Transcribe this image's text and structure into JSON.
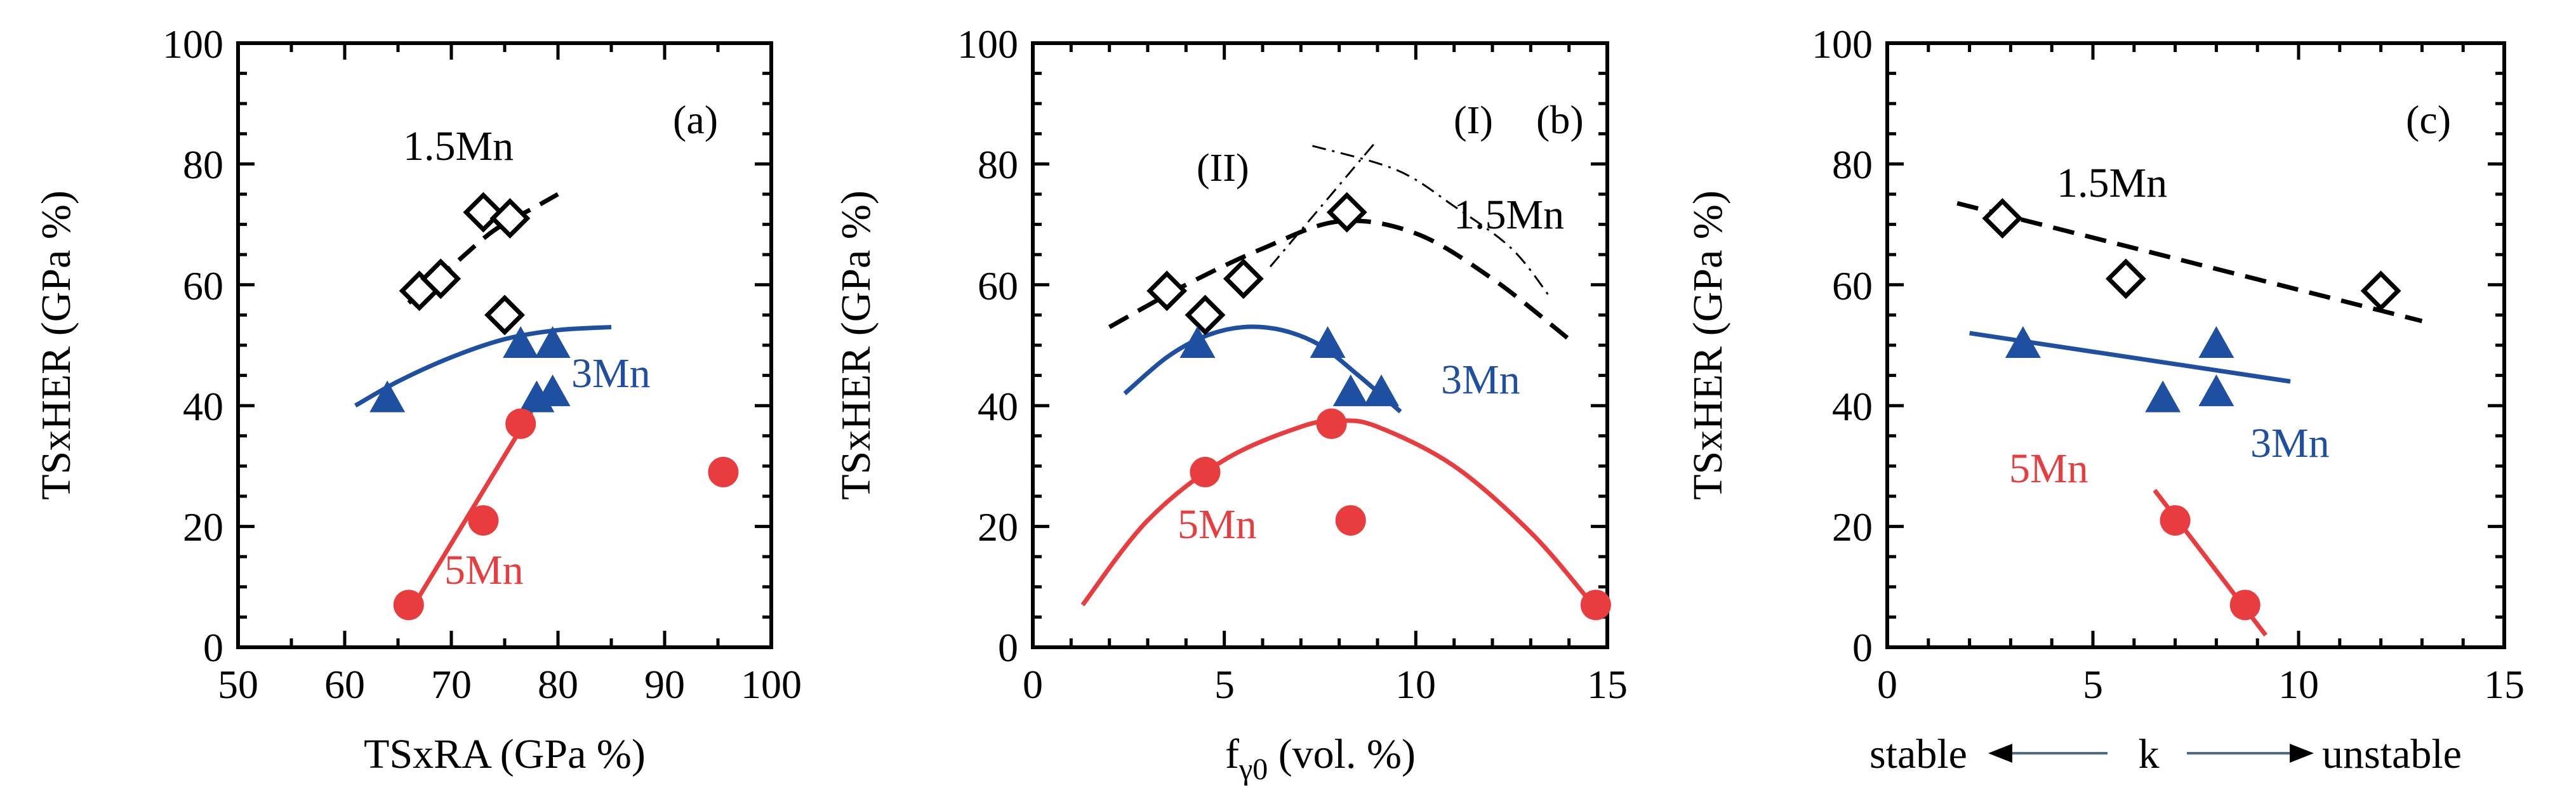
{
  "chart_data": [
    {
      "type": "scatter",
      "panel_label": "(a)",
      "xlabel": "TSxRA (GPa %)",
      "ylabel": "TSxHER (GPa %)",
      "xlim": [
        50,
        100
      ],
      "ylim": [
        0,
        100
      ],
      "xticks": [
        "50",
        "60",
        "70",
        "80",
        "90",
        "100"
      ],
      "yticks": [
        "0",
        "20",
        "40",
        "60",
        "80",
        "100"
      ],
      "series": [
        {
          "name": "1.5Mn",
          "marker": "diamond-open",
          "color": "#000000",
          "points": [
            [
              67,
              59
            ],
            [
              69,
              61
            ],
            [
              73,
              72
            ],
            [
              75.5,
              71
            ],
            [
              75,
              55
            ]
          ],
          "fit": {
            "style": "dashed",
            "points": [
              [
                66,
                57
              ],
              [
                70,
                63
              ],
              [
                74,
                69
              ],
              [
                78,
                73
              ],
              [
                80,
                75
              ]
            ]
          }
        },
        {
          "name": "3Mn",
          "marker": "triangle",
          "color": "#1f4fa0",
          "points": [
            [
              64,
              41
            ],
            [
              76.5,
              50
            ],
            [
              79.5,
              50
            ],
            [
              78,
              41
            ],
            [
              79.5,
              42
            ]
          ],
          "fit": {
            "style": "solid",
            "points": [
              [
                61,
                40
              ],
              [
                65,
                44
              ],
              [
                70,
                48
              ],
              [
                75,
                51
              ],
              [
                80,
                52.5
              ],
              [
                85,
                53
              ]
            ]
          }
        },
        {
          "name": "5Mn",
          "marker": "circle",
          "color": "#e83c3f",
          "points": [
            [
              66,
              7
            ],
            [
              73,
              21
            ],
            [
              76.5,
              37
            ],
            [
              95.5,
              29
            ]
          ],
          "fit": {
            "style": "solid",
            "points": [
              [
                66.5,
                7
              ],
              [
                77.5,
                39
              ]
            ]
          }
        }
      ]
    },
    {
      "type": "scatter",
      "panel_label": "(b)",
      "xlabel": "f",
      "xlabel_sub": "γ0",
      "xlabel_suffix": " (vol. %)",
      "ylabel": "TSxHER (GPa %)",
      "xlim": [
        0,
        15
      ],
      "ylim": [
        0,
        100
      ],
      "xticks": [
        "0",
        "5",
        "10",
        "15"
      ],
      "yticks": [
        "0",
        "20",
        "40",
        "60",
        "80",
        "100"
      ],
      "annotations": [
        "(I)",
        "(II)"
      ],
      "series": [
        {
          "name": "1.5Mn",
          "marker": "diamond-open",
          "color": "#000000",
          "points": [
            [
              3.5,
              59
            ],
            [
              4.5,
              55
            ],
            [
              5.5,
              61
            ],
            [
              8.2,
              72
            ]
          ],
          "fit": {
            "style": "dashed",
            "points": [
              [
                2,
                53
              ],
              [
                4,
                60
              ],
              [
                6,
                66
              ],
              [
                8,
                70.5
              ],
              [
                10,
                68.5
              ],
              [
                12,
                61
              ],
              [
                14,
                51
              ]
            ]
          }
        },
        {
          "name": "3Mn",
          "marker": "triangle",
          "color": "#1f4fa0",
          "points": [
            [
              4.3,
              50
            ],
            [
              7.7,
              50
            ],
            [
              8.3,
              42
            ],
            [
              9.1,
              42
            ]
          ],
          "fit": {
            "style": "solid",
            "points": [
              [
                2.4,
                42
              ],
              [
                3.5,
                48
              ],
              [
                4.5,
                51.5
              ],
              [
                5.5,
                53
              ],
              [
                6.5,
                52.5
              ],
              [
                7.5,
                50
              ],
              [
                8.5,
                45
              ],
              [
                9.6,
                39
              ]
            ]
          }
        },
        {
          "name": "5Mn",
          "marker": "circle",
          "color": "#e83c3f",
          "points": [
            [
              4.5,
              29
            ],
            [
              7.8,
              37
            ],
            [
              8.3,
              21
            ],
            [
              14.7,
              7
            ]
          ],
          "fit": {
            "style": "solid",
            "points": [
              [
                1.3,
                7
              ],
              [
                3,
                21
              ],
              [
                5,
                31
              ],
              [
                7,
                36.5
              ],
              [
                8,
                37.5
              ],
              [
                9,
                36.5
              ],
              [
                11,
                30
              ],
              [
                13,
                19
              ],
              [
                14.5,
                8
              ]
            ]
          }
        },
        {
          "name": "(I)",
          "marker": "none",
          "color": "#000000",
          "fit": {
            "style": "dashdot",
            "points": [
              [
                6.2,
                63
              ],
              [
                9,
                84
              ]
            ]
          }
        },
        {
          "name": "(II)",
          "marker": "none",
          "color": "#000000",
          "fit": {
            "style": "dashdot",
            "points": [
              [
                7.3,
                83
              ],
              [
                9.5,
                79
              ],
              [
                11,
                73
              ],
              [
                12.5,
                66
              ],
              [
                13.5,
                58
              ]
            ]
          }
        }
      ]
    },
    {
      "type": "scatter",
      "panel_label": "(c)",
      "xlabel": "k",
      "xlabel_left": "stable",
      "xlabel_right": "unstable",
      "ylabel": "TSxHER (GPa %)",
      "xlim": [
        0,
        15
      ],
      "ylim": [
        0,
        100
      ],
      "xticks": [
        "0",
        "5",
        "10",
        "15"
      ],
      "yticks": [
        "0",
        "20",
        "40",
        "60",
        "80",
        "100"
      ],
      "series": [
        {
          "name": "1.5Mn",
          "marker": "diamond-open",
          "color": "#000000",
          "points": [
            [
              2.8,
              71
            ],
            [
              5.8,
              61
            ],
            [
              12,
              59
            ]
          ],
          "fit": {
            "style": "dashed",
            "points": [
              [
                1.7,
                73.5
              ],
              [
                13,
                54
              ]
            ]
          }
        },
        {
          "name": "3Mn",
          "marker": "triangle",
          "color": "#1f4fa0",
          "points": [
            [
              3.3,
              50
            ],
            [
              6.7,
              41
            ],
            [
              8,
              50
            ],
            [
              8,
              42
            ]
          ],
          "fit": {
            "style": "solid",
            "points": [
              [
                2,
                52
              ],
              [
                9.8,
                44
              ]
            ]
          }
        },
        {
          "name": "5Mn",
          "marker": "circle",
          "color": "#e83c3f",
          "points": [
            [
              7,
              21
            ],
            [
              8.7,
              7
            ]
          ],
          "fit": {
            "style": "solid",
            "points": [
              [
                6.5,
                26
              ],
              [
                9.2,
                2
              ]
            ]
          }
        }
      ]
    }
  ]
}
